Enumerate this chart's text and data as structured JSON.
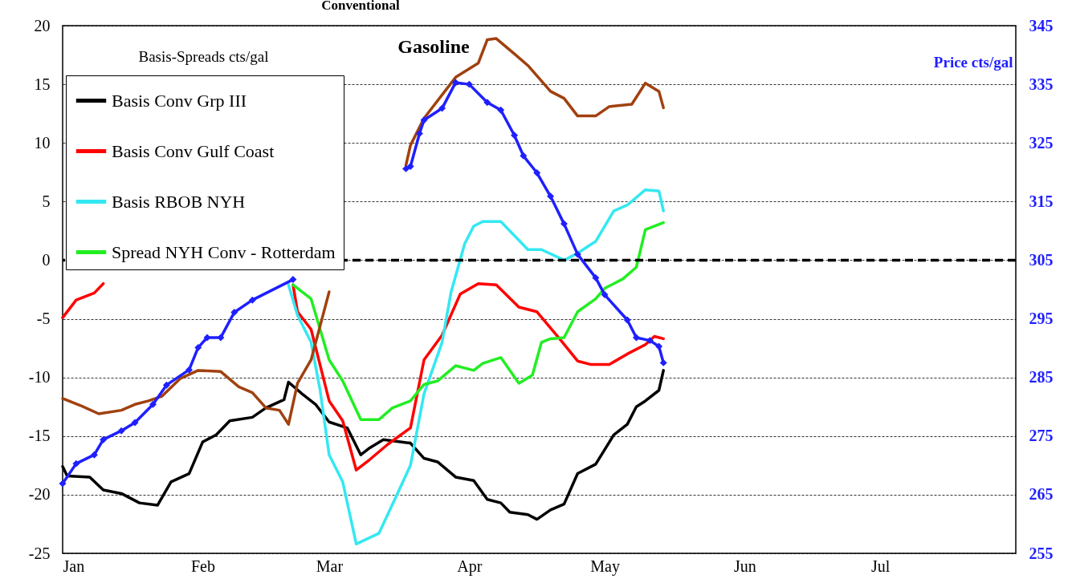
{
  "chart_data": {
    "type": "line",
    "title": "Conventional",
    "annotations": [
      "Gasoline"
    ],
    "ylabel": "Basis-Spreads cts/gal",
    "y2label": "Price cts/gal",
    "xlim": [
      "--01-01",
      "--07-31"
    ],
    "xticks": [
      {
        "value": "--01-01",
        "label": "Jan"
      },
      {
        "value": "--02-01",
        "label": "Feb"
      },
      {
        "value": "--03-01",
        "label": "Mar"
      },
      {
        "value": "--04-01",
        "label": "Apr"
      },
      {
        "value": "--05-01",
        "label": "May"
      },
      {
        "value": "--06-01",
        "label": "Jun"
      },
      {
        "value": "--07-01",
        "label": "Jul"
      }
    ],
    "ylim": [
      -25,
      20
    ],
    "yticks": [
      -25,
      -20,
      -15,
      -10,
      -5,
      0,
      5,
      10,
      15,
      20
    ],
    "y2lim": [
      255,
      345
    ],
    "y2ticks": [
      255,
      265,
      275,
      285,
      295,
      305,
      315,
      325,
      335,
      345
    ],
    "grid": "y",
    "legend": "top left",
    "ref_lines": [
      {
        "axis": "y",
        "value": 0,
        "color": "#000000",
        "line_style": "dashed"
      }
    ],
    "series": [
      {
        "name": "Basis Conv Grp III",
        "color": "#000000",
        "x": [
          "--01-01",
          "--01-02",
          "--01-07",
          "--01-10",
          "--01-14",
          "--01-18",
          "--01-22",
          "--01-25",
          "--01-29",
          "--02-01",
          "--02-04",
          "--02-07",
          "--02-12",
          "--02-15",
          "--02-19",
          "--02-20",
          "--02-23",
          "--02-26",
          "--03-01",
          "--03-05",
          "--03-08",
          "--03-10",
          "--03-13",
          "--03-19",
          "--03-22",
          "--03-25",
          "--03-29",
          "--04-02",
          "--04-05",
          "--04-08",
          "--04-10",
          "--04-14",
          "--04-16",
          "--04-19",
          "--04-22",
          "--04-25",
          "--04-29",
          "--05-03",
          "--05-06",
          "--05-08",
          "--05-10",
          "--05-13",
          "--05-14"
        ],
        "values": [
          -17.6,
          -18.4,
          -18.5,
          -19.6,
          -19.9,
          -20.7,
          -20.9,
          -18.9,
          -18.2,
          -15.5,
          -14.9,
          -13.7,
          -13.4,
          -12.6,
          -11.9,
          -10.4,
          -11.4,
          -12.3,
          -13.8,
          -14.3,
          -16.6,
          -16.0,
          -15.3,
          -15.6,
          -16.9,
          -17.2,
          -18.5,
          -18.8,
          -20.4,
          -20.7,
          -21.5,
          -21.7,
          -22.1,
          -21.3,
          -20.8,
          -18.2,
          -17.4,
          -14.9,
          -14.0,
          -12.5,
          -12.0,
          -11.1,
          -9.4
        ]
      },
      {
        "name": "Basis Conv Gulf Coast",
        "color": "#ff0000",
        "x": [
          "--01-01",
          "--01-04",
          "--01-08",
          "--01-10",
          "--01-31",
          "--02-21",
          "--02-22",
          "--02-25",
          "--03-01",
          "--03-04",
          "--03-07",
          "--03-10",
          "--03-14",
          "--03-19",
          "--03-22",
          "--03-26",
          "--03-30",
          "--04-03",
          "--04-07",
          "--04-12",
          "--04-16",
          "--04-21",
          "--04-25",
          "--04-28",
          "--05-02",
          "--05-06",
          "--05-10",
          "--05-12",
          "--05-14"
        ],
        "values": [
          -4.9,
          -3.4,
          -2.8,
          -2.0,
          null,
          -2.1,
          -4.4,
          -5.9,
          -12.0,
          -13.7,
          -17.9,
          -17.0,
          -15.7,
          -14.3,
          -8.5,
          -6.4,
          -2.9,
          -2.0,
          -2.1,
          -4.0,
          -4.4,
          -6.7,
          -8.6,
          -8.9,
          -8.9,
          -8.0,
          -7.2,
          -6.5,
          -6.7
        ]
      },
      {
        "name": "Basis RBOB NYH",
        "color": "#33e8f2",
        "x": [
          "--02-20",
          "--02-22",
          "--02-25",
          "--02-27",
          "--03-01",
          "--03-04",
          "--03-07",
          "--03-12",
          "--03-16",
          "--03-19",
          "--03-22",
          "--03-26",
          "--03-28",
          "--03-31",
          "--04-02",
          "--04-04",
          "--04-08",
          "--04-11",
          "--04-14",
          "--04-17",
          "--04-22",
          "--04-25",
          "--04-29",
          "--05-03",
          "--05-06",
          "--05-10",
          "--05-13",
          "--05-14"
        ],
        "values": [
          -2.1,
          -4.7,
          -7.0,
          -11.1,
          -16.6,
          -18.9,
          -24.2,
          -23.3,
          -20.0,
          -17.5,
          -11.4,
          -7.0,
          -2.7,
          1.4,
          2.9,
          3.3,
          3.3,
          2.1,
          0.9,
          0.9,
          0.0,
          0.6,
          1.6,
          4.2,
          4.7,
          6.0,
          5.9,
          4.2
        ]
      },
      {
        "name": "Spread NYH Conv - Rotterdam",
        "color": "#22ee22",
        "x": [
          "--02-21",
          "--02-25",
          "--03-01",
          "--03-04",
          "--03-08",
          "--03-12",
          "--03-15",
          "--03-19",
          "--03-22",
          "--03-25",
          "--03-29",
          "--04-02",
          "--04-04",
          "--04-08",
          "--04-12",
          "--04-15",
          "--04-17",
          "--04-19",
          "--04-22",
          "--04-25",
          "--04-29",
          "--05-01",
          "--05-05",
          "--05-08",
          "--05-10",
          "--05-14"
        ],
        "values": [
          -2.1,
          -3.3,
          -8.5,
          -10.3,
          -13.6,
          -13.6,
          -12.6,
          -12.0,
          -10.6,
          -10.3,
          -9.0,
          -9.4,
          -8.8,
          -8.3,
          -10.5,
          -9.8,
          -7.0,
          -6.7,
          -6.6,
          -4.4,
          -3.3,
          -2.4,
          -1.6,
          -0.6,
          2.6,
          3.2
        ]
      },
      {
        "color": "#a0410f",
        "x": [
          "--01-01",
          "--01-05",
          "--01-09",
          "--01-14",
          "--01-17",
          "--01-20",
          "--01-23",
          "--01-27",
          "--01-31",
          "--02-05",
          "--02-09",
          "--02-12",
          "--02-15",
          "--02-18",
          "--02-20",
          "--02-22",
          "--02-25",
          "--02-27",
          "--03-01",
          "--03-10",
          "--03-18",
          "--03-19",
          "--03-22",
          "--03-29",
          "--04-03",
          "--04-05",
          "--04-07",
          "--04-11",
          "--04-14",
          "--04-19",
          "--04-22",
          "--04-25",
          "--04-29",
          "--05-02",
          "--05-07",
          "--05-10",
          "--05-13",
          "--05-14"
        ],
        "values": [
          -11.8,
          -12.4,
          -13.1,
          -12.8,
          -12.3,
          -12.0,
          -11.6,
          -10.1,
          -9.4,
          -9.5,
          -10.8,
          -11.3,
          -12.6,
          -12.8,
          -14.0,
          -10.5,
          -8.5,
          -5.6,
          -2.7,
          null,
          8.1,
          9.8,
          12.1,
          15.6,
          16.8,
          18.8,
          18.9,
          17.6,
          16.6,
          14.4,
          13.8,
          12.3,
          12.3,
          13.1,
          13.3,
          15.1,
          14.4,
          13.0
        ]
      },
      {
        "color": "#1f1fff",
        "axis": "y2",
        "marker": "diamond",
        "x": [
          "--01-01",
          "--01-04",
          "--01-08",
          "--01-10",
          "--01-14",
          "--01-17",
          "--01-21",
          "--01-24",
          "--01-29",
          "--01-31",
          "--02-02",
          "--02-05",
          "--02-08",
          "--02-12",
          "--02-21",
          "--03-06",
          "--03-18",
          "--03-19",
          "--03-21",
          "--03-22",
          "--03-26",
          "--03-29",
          "--04-01",
          "--04-05",
          "--04-08",
          "--04-11",
          "--04-13",
          "--04-16",
          "--04-19",
          "--04-22",
          "--04-25",
          "--04-29",
          "--05-01",
          "--05-06",
          "--05-08",
          "--05-11",
          "--05-13",
          "--05-14"
        ],
        "values": [
          266.9,
          270.3,
          271.8,
          274.4,
          275.9,
          277.3,
          280.4,
          283.7,
          286.3,
          290.1,
          291.8,
          291.8,
          296.1,
          298.2,
          301.7,
          null,
          320.6,
          321.0,
          326.6,
          328.9,
          330.9,
          335.3,
          335.0,
          331.9,
          330.6,
          326.3,
          322.8,
          319.9,
          315.9,
          311.2,
          306.0,
          302.0,
          299.1,
          294.8,
          291.8,
          291.3,
          290.3,
          287.5
        ]
      }
    ]
  }
}
